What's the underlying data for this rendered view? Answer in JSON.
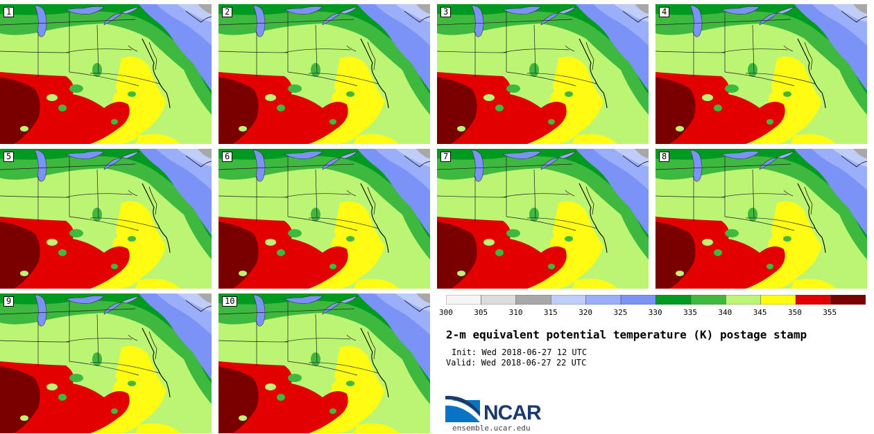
{
  "panels": [
    {
      "label": "1"
    },
    {
      "label": "2"
    },
    {
      "label": "3"
    },
    {
      "label": "4"
    },
    {
      "label": "5"
    },
    {
      "label": "6"
    },
    {
      "label": "7"
    },
    {
      "label": "8"
    },
    {
      "label": "9"
    },
    {
      "label": "10"
    }
  ],
  "colorbar": {
    "ticks": [
      "300",
      "305",
      "310",
      "315",
      "320",
      "325",
      "330",
      "335",
      "340",
      "345",
      "350",
      "355"
    ],
    "colors": [
      "#f5f5f5",
      "#dcdcdc",
      "#a8a8a8",
      "#c0cdf8",
      "#9aaefa",
      "#7b93f6",
      "#019a20",
      "#3fb83f",
      "#bcf573",
      "#fffb12",
      "#e30000",
      "#7a0000"
    ]
  },
  "title": "2-m equivalent potential temperature (K) postage stamp",
  "init": "Init: Wed 2018-06-27 12 UTC",
  "valid": "Valid: Wed 2018-06-27 22 UTC",
  "logo": {
    "name": "NCAR",
    "site": "ensemble.ucar.edu"
  }
}
